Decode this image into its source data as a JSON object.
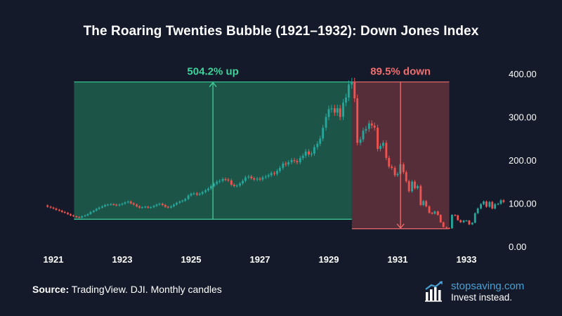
{
  "title": "The Roaring Twenties Bubble (1921–1932): Down Jones Index",
  "source": {
    "label": "Source:",
    "text": " TradingView. DJI. Monthly candles"
  },
  "brand": {
    "name": "stopsaving.com",
    "tagline": "Invest instead."
  },
  "colors": {
    "background": "#141a29",
    "up": "#26a69a",
    "down": "#ef5350",
    "up_zone": "#1d5a4b",
    "down_zone": "#5a2f3a",
    "up_line": "#3fd29b",
    "down_line": "#f06e6e",
    "brand": "#4aa0d4"
  },
  "chart_data": {
    "type": "candlestick",
    "y_ticks": [
      "400.00",
      "300.00",
      "200.00",
      "100.00",
      "0.00"
    ],
    "y_tick_values": [
      400,
      300,
      200,
      100,
      0
    ],
    "ylim": [
      0,
      400
    ],
    "x_ticks": [
      "1921",
      "1923",
      "1925",
      "1927",
      "1929",
      "1931",
      "1933"
    ],
    "x_tick_values": [
      1921,
      1923,
      1925,
      1927,
      1929,
      1931,
      1933
    ],
    "xlim": [
      1920.5,
      1934.2
    ],
    "rise": {
      "label": "504.2% up",
      "start_date": 1921.6,
      "end_date": 1929.67,
      "low": 63,
      "high": 381
    },
    "fall": {
      "label": "89.5% down",
      "start_date": 1929.67,
      "end_date": 1932.5,
      "high": 381,
      "low": 41
    },
    "closes": [
      [
        1920.75,
        95
      ],
      [
        1920.83,
        92
      ],
      [
        1920.92,
        90
      ],
      [
        1921.0,
        88
      ],
      [
        1921.08,
        85
      ],
      [
        1921.17,
        83
      ],
      [
        1921.25,
        80
      ],
      [
        1921.33,
        78
      ],
      [
        1921.42,
        75
      ],
      [
        1921.5,
        72
      ],
      [
        1921.58,
        70
      ],
      [
        1921.67,
        68
      ],
      [
        1921.75,
        67
      ],
      [
        1921.83,
        70
      ],
      [
        1921.92,
        72
      ],
      [
        1922.0,
        75
      ],
      [
        1922.08,
        80
      ],
      [
        1922.17,
        83
      ],
      [
        1922.25,
        87
      ],
      [
        1922.33,
        90
      ],
      [
        1922.42,
        93
      ],
      [
        1922.5,
        96
      ],
      [
        1922.58,
        97
      ],
      [
        1922.67,
        98
      ],
      [
        1922.75,
        97
      ],
      [
        1922.83,
        95
      ],
      [
        1922.92,
        97
      ],
      [
        1923.0,
        99
      ],
      [
        1923.08,
        102
      ],
      [
        1923.17,
        104
      ],
      [
        1923.25,
        100
      ],
      [
        1923.33,
        97
      ],
      [
        1923.42,
        93
      ],
      [
        1923.5,
        90
      ],
      [
        1923.58,
        91
      ],
      [
        1923.67,
        92
      ],
      [
        1923.75,
        90
      ],
      [
        1923.83,
        91
      ],
      [
        1923.92,
        94
      ],
      [
        1924.0,
        97
      ],
      [
        1924.08,
        99
      ],
      [
        1924.17,
        96
      ],
      [
        1924.25,
        92
      ],
      [
        1924.33,
        90
      ],
      [
        1924.42,
        93
      ],
      [
        1924.5,
        97
      ],
      [
        1924.58,
        101
      ],
      [
        1924.67,
        104
      ],
      [
        1924.75,
        106
      ],
      [
        1924.83,
        110
      ],
      [
        1924.92,
        118
      ],
      [
        1925.0,
        122
      ],
      [
        1925.08,
        123
      ],
      [
        1925.17,
        120
      ],
      [
        1925.25,
        122
      ],
      [
        1925.33,
        126
      ],
      [
        1925.42,
        130
      ],
      [
        1925.5,
        134
      ],
      [
        1925.58,
        140
      ],
      [
        1925.67,
        145
      ],
      [
        1925.75,
        150
      ],
      [
        1925.83,
        152
      ],
      [
        1925.92,
        156
      ],
      [
        1926.0,
        155
      ],
      [
        1926.08,
        153
      ],
      [
        1926.17,
        143
      ],
      [
        1926.25,
        140
      ],
      [
        1926.33,
        141
      ],
      [
        1926.42,
        146
      ],
      [
        1926.5,
        152
      ],
      [
        1926.58,
        160
      ],
      [
        1926.67,
        162
      ],
      [
        1926.75,
        158
      ],
      [
        1926.83,
        155
      ],
      [
        1926.92,
        157
      ],
      [
        1927.0,
        155
      ],
      [
        1927.08,
        160
      ],
      [
        1927.17,
        162
      ],
      [
        1927.25,
        165
      ],
      [
        1927.33,
        170
      ],
      [
        1927.42,
        168
      ],
      [
        1927.5,
        175
      ],
      [
        1927.58,
        182
      ],
      [
        1927.67,
        192
      ],
      [
        1927.75,
        190
      ],
      [
        1927.83,
        195
      ],
      [
        1927.92,
        200
      ],
      [
        1928.0,
        198
      ],
      [
        1928.08,
        195
      ],
      [
        1928.17,
        205
      ],
      [
        1928.25,
        210
      ],
      [
        1928.33,
        220
      ],
      [
        1928.42,
        213
      ],
      [
        1928.5,
        215
      ],
      [
        1928.58,
        230
      ],
      [
        1928.67,
        238
      ],
      [
        1928.75,
        250
      ],
      [
        1928.83,
        275
      ],
      [
        1928.92,
        300
      ],
      [
        1929.0,
        318
      ],
      [
        1929.08,
        320
      ],
      [
        1929.17,
        310
      ],
      [
        1929.25,
        320
      ],
      [
        1929.33,
        300
      ],
      [
        1929.42,
        333
      ],
      [
        1929.5,
        345
      ],
      [
        1929.58,
        375
      ],
      [
        1929.67,
        381
      ],
      [
        1929.75,
        343
      ],
      [
        1929.83,
        240
      ],
      [
        1929.92,
        248
      ],
      [
        1930.0,
        268
      ],
      [
        1930.08,
        272
      ],
      [
        1930.17,
        285
      ],
      [
        1930.25,
        280
      ],
      [
        1930.33,
        275
      ],
      [
        1930.42,
        226
      ],
      [
        1930.5,
        233
      ],
      [
        1930.58,
        240
      ],
      [
        1930.67,
        205
      ],
      [
        1930.75,
        185
      ],
      [
        1930.83,
        182
      ],
      [
        1930.92,
        165
      ],
      [
        1931.0,
        168
      ],
      [
        1931.08,
        190
      ],
      [
        1931.17,
        172
      ],
      [
        1931.25,
        151
      ],
      [
        1931.33,
        128
      ],
      [
        1931.42,
        150
      ],
      [
        1931.5,
        135
      ],
      [
        1931.58,
        140
      ],
      [
        1931.67,
        96
      ],
      [
        1931.75,
        105
      ],
      [
        1931.83,
        93
      ],
      [
        1931.92,
        78
      ],
      [
        1932.0,
        76
      ],
      [
        1932.08,
        81
      ],
      [
        1932.17,
        73
      ],
      [
        1932.25,
        56
      ],
      [
        1932.33,
        45
      ],
      [
        1932.42,
        43
      ],
      [
        1932.5,
        42
      ],
      [
        1932.58,
        73
      ],
      [
        1932.67,
        72
      ],
      [
        1932.75,
        61
      ],
      [
        1932.83,
        56
      ],
      [
        1932.92,
        60
      ],
      [
        1933.0,
        60
      ],
      [
        1933.08,
        51
      ],
      [
        1933.17,
        55
      ],
      [
        1933.25,
        77
      ],
      [
        1933.33,
        88
      ],
      [
        1933.42,
        98
      ],
      [
        1933.5,
        104
      ],
      [
        1933.58,
        92
      ],
      [
        1933.67,
        103
      ],
      [
        1933.75,
        88
      ],
      [
        1933.83,
        98
      ],
      [
        1933.92,
        99
      ],
      [
        1934.0,
        107
      ],
      [
        1934.08,
        103
      ]
    ]
  }
}
